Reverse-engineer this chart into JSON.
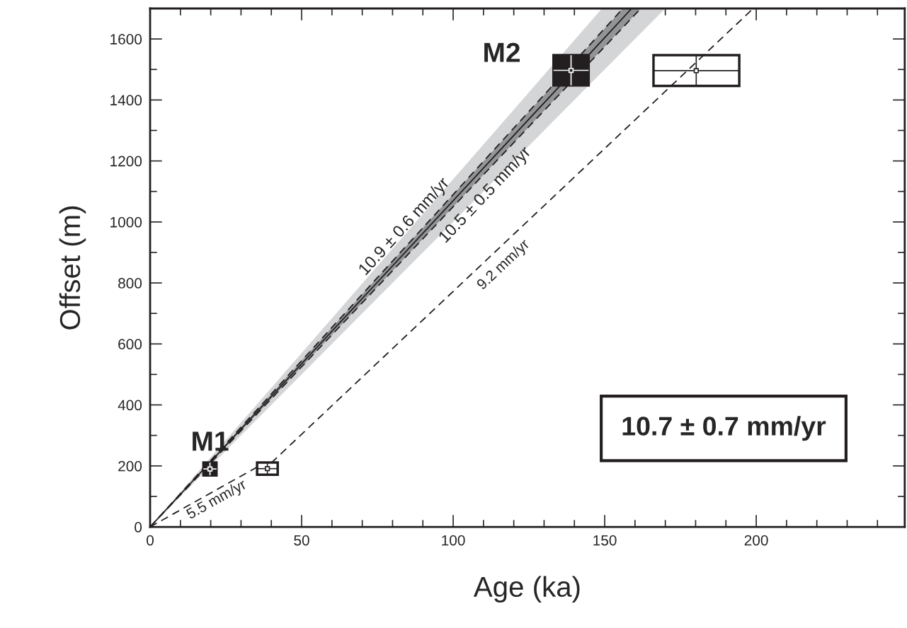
{
  "chart_data": {
    "type": "line",
    "xlabel": "Age (ka)",
    "ylabel": "Offset (m)",
    "xlim": [
      0,
      249
    ],
    "ylim": [
      0,
      1700
    ],
    "xticks": [
      0,
      {
        "value": 10,
        "label": null
      },
      {
        "value": 20,
        "label": null
      },
      {
        "value": 30,
        "label": null
      },
      {
        "value": 40,
        "label": null
      },
      50,
      {
        "value": 60,
        "label": null
      },
      {
        "value": 70,
        "label": null
      },
      {
        "value": 80,
        "label": null
      },
      {
        "value": 90,
        "label": null
      },
      100,
      {
        "value": 110,
        "label": null
      },
      {
        "value": 120,
        "label": null
      },
      {
        "value": 130,
        "label": null
      },
      {
        "value": 140,
        "label": null
      },
      150,
      {
        "value": 160,
        "label": null
      },
      {
        "value": 170,
        "label": null
      },
      {
        "value": 180,
        "label": null
      },
      {
        "value": 190,
        "label": null
      },
      200,
      {
        "value": 210,
        "label": null
      },
      {
        "value": 220,
        "label": null
      },
      {
        "value": 230,
        "label": null
      },
      {
        "value": 240,
        "label": null
      }
    ],
    "yticks": [
      0,
      {
        "value": 100,
        "label": null
      },
      200,
      {
        "value": 300,
        "label": null
      },
      400,
      {
        "value": 500,
        "label": null
      },
      600,
      {
        "value": 700,
        "label": null
      },
      800,
      {
        "value": 900,
        "label": null
      },
      1000,
      {
        "value": 1100,
        "label": null
      },
      1200,
      {
        "value": 1300,
        "label": null
      },
      1400,
      {
        "value": 1500,
        "label": null
      },
      1600
    ],
    "series": [
      {
        "type": "line",
        "color": "#231f20",
        "line_style": "solid",
        "x": [
          0,
          149.1,
          158.9,
          170
        ],
        "values": [
          0,
          1595,
          1700,
          null
        ],
        "upper": [
          0,
          1700,
          1700,
          1700
        ],
        "lower": [
          0,
          1491,
          1589,
          1700
        ]
      },
      {
        "type": "line",
        "name": "10.9 ± 0.6 mm/yr",
        "color": "#231f20",
        "line_style": "dashed",
        "x": [
          0,
          156
        ],
        "values": [
          0,
          1700
        ]
      },
      {
        "type": "line",
        "name": "10.5 ± 0.5 mm/yr",
        "color": "#231f20",
        "line_style": "dashed",
        "x": [
          0,
          156,
          161.9
        ],
        "values": [
          0,
          1638,
          1700
        ],
        "upper": [
          0,
          1700,
          1700
        ],
        "lower": [
          0,
          1638,
          1700
        ]
      },
      {
        "type": "line",
        "name": "9.2 mm/yr",
        "color": "#231f20",
        "line_style": "dashed",
        "x": [
          40,
          199
        ],
        "values": [
          210,
          1700
        ]
      },
      {
        "type": "line",
        "name": "5.5 mm/yr",
        "color": "#231f20",
        "line_style": "dashed",
        "x": [
          0,
          36
        ],
        "values": [
          0,
          200
        ]
      },
      {
        "type": "scatter",
        "name": "M1",
        "marker": "square",
        "colors": [
          "#231f20",
          "#ffffff"
        ],
        "x": [
          19.75,
          38.7
        ],
        "values": [
          190,
          191
        ],
        "xerrors": [
          [
            17.6,
            21.9
          ],
          [
            35.3,
            42.1
          ]
        ],
        "errors": [
          [
            169,
            211
          ],
          [
            171,
            211
          ]
        ]
      },
      {
        "type": "scatter",
        "name": "M2",
        "marker": "square",
        "colors": [
          "#231f20",
          "#ffffff"
        ],
        "x": [
          138.9,
          180.2
        ],
        "values": [
          1497,
          1496
        ],
        "xerrors": [
          [
            133.1,
            144.7
          ],
          [
            166.1,
            194.4
          ]
        ],
        "errors": [
          [
            1448,
            1547
          ],
          [
            1446,
            1547
          ]
        ]
      }
    ],
    "annotations": [
      "10.7 ± 0.7 mm/yr"
    ]
  }
}
